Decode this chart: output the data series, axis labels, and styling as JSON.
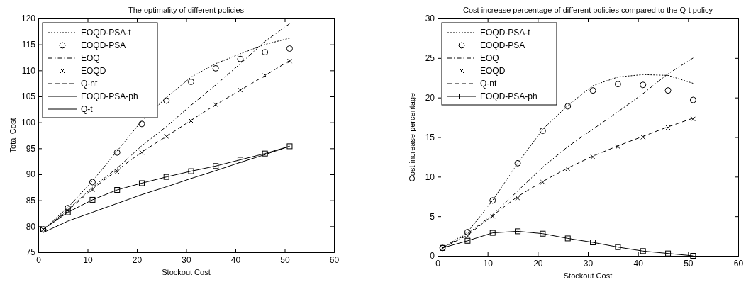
{
  "chart_data": [
    {
      "type": "line",
      "title": "The optimality of different policies",
      "xlabel": "Stockout Cost",
      "ylabel": "Total Cost",
      "x": [
        1,
        6,
        11,
        16,
        21,
        26,
        31,
        36,
        41,
        46,
        51
      ],
      "xlim": [
        0,
        60
      ],
      "xticks": [
        0,
        10,
        20,
        30,
        40,
        50,
        60
      ],
      "ylim": [
        75,
        120
      ],
      "yticks": [
        75,
        80,
        85,
        90,
        95,
        100,
        105,
        110,
        115,
        120
      ],
      "legend": "top left",
      "series": [
        {
          "name": "EOQD-PSA-t",
          "type": "line",
          "line_style": "dotted",
          "color": "#000000",
          "values": [
            79.4,
            83.6,
            88.7,
            94.5,
            100.3,
            104.8,
            108.7,
            111.3,
            113.2,
            115,
            116.2
          ]
        },
        {
          "name": "EOQD-PSA",
          "type": "scatter",
          "marker": "circle",
          "color": "#000000",
          "values": [
            79.4,
            83.5,
            88.5,
            94.2,
            99.7,
            104.2,
            107.8,
            110.4,
            112.2,
            113.5,
            114.2
          ]
        },
        {
          "name": "EOQ",
          "type": "line",
          "line_style": "dashdot",
          "color": "#000000",
          "values": [
            79.4,
            83.2,
            87.5,
            91.2,
            95.5,
            99.2,
            103.3,
            107.2,
            111.3,
            115.6,
            119
          ]
        },
        {
          "name": "EOQD",
          "type": "scatter",
          "marker": "cross",
          "color": "#000000",
          "values": [
            79.4,
            83,
            87,
            90.5,
            94.2,
            97.3,
            100.3,
            103.4,
            106.2,
            109,
            111.8
          ]
        },
        {
          "name": "Q-nt",
          "type": "line",
          "line_style": "dashed",
          "color": "#000000",
          "values": [
            79.4,
            83,
            87.2,
            90.8,
            94.3,
            97.3,
            100.4,
            103.4,
            106.2,
            109,
            111.9
          ]
        },
        {
          "name": "EOQD-PSA-ph",
          "type": "line",
          "line_style": "solid",
          "marker": "square",
          "color": "#000000",
          "values": [
            79.4,
            82.7,
            85.1,
            87,
            88.3,
            89.5,
            90.6,
            91.6,
            92.8,
            94,
            95.4
          ]
        },
        {
          "name": "Q-t",
          "type": "line",
          "line_style": "solid",
          "color": "#000000",
          "values": [
            78.8,
            81,
            82.7,
            84.4,
            86.1,
            87.6,
            89.2,
            90.7,
            92.3,
            93.8,
            95.4
          ]
        }
      ]
    },
    {
      "type": "line",
      "title": "Cost increase percentage of different policies compared to the Q-t policy",
      "xlabel": "Stockout Cost",
      "ylabel": "Cost increase percentage",
      "x": [
        1,
        6,
        11,
        16,
        21,
        26,
        31,
        36,
        41,
        46,
        51
      ],
      "xlim": [
        0,
        60
      ],
      "xticks": [
        0,
        10,
        20,
        30,
        40,
        50,
        60
      ],
      "ylim": [
        0,
        30
      ],
      "yticks": [
        0,
        5,
        10,
        15,
        20,
        25,
        30
      ],
      "legend": "top left",
      "series": [
        {
          "name": "EOQD-PSA-t",
          "type": "line",
          "line_style": "dotted",
          "color": "#000000",
          "values": [
            1,
            3,
            7,
            11.7,
            16,
            19,
            21.5,
            22.6,
            22.9,
            22.8,
            21.8
          ]
        },
        {
          "name": "EOQD-PSA",
          "type": "scatter",
          "marker": "circle",
          "color": "#000000",
          "values": [
            1,
            3,
            7,
            11.7,
            15.8,
            18.9,
            20.9,
            21.7,
            21.6,
            20.9,
            19.7
          ]
        },
        {
          "name": "EOQ",
          "type": "line",
          "line_style": "dashdot",
          "color": "#000000",
          "values": [
            1,
            2.8,
            5.2,
            8.2,
            11.2,
            13.8,
            16,
            18.2,
            20.5,
            23,
            25
          ]
        },
        {
          "name": "EOQD",
          "type": "scatter",
          "marker": "cross",
          "color": "#000000",
          "values": [
            1,
            2.5,
            5,
            7.3,
            9.3,
            11,
            12.5,
            13.8,
            15,
            16.2,
            17.3
          ]
        },
        {
          "name": "Q-nt",
          "type": "line",
          "line_style": "dashed",
          "color": "#000000",
          "values": [
            1,
            2.6,
            5.1,
            7.5,
            9.4,
            11.1,
            12.6,
            13.9,
            15.1,
            16.3,
            17.4
          ]
        },
        {
          "name": "EOQD-PSA-ph",
          "type": "line",
          "line_style": "solid",
          "marker": "square",
          "color": "#000000",
          "values": [
            1,
            1.9,
            2.9,
            3.1,
            2.8,
            2.2,
            1.7,
            1.1,
            0.6,
            0.3,
            0
          ]
        }
      ]
    }
  ]
}
